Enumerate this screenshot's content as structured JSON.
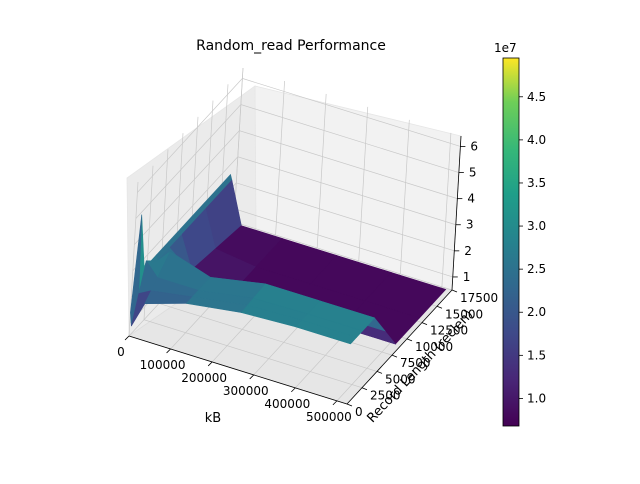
{
  "chart_data": {
    "type": "surface",
    "title": "Random_read Performance",
    "xlabel": "kB",
    "ylabel": "Record Length (reclen)",
    "zlabel": "",
    "x_ticks": [
      "0",
      "100000",
      "200000",
      "300000",
      "400000",
      "500000"
    ],
    "y_ticks": [
      "0",
      "2500",
      "5000",
      "7500",
      "10000",
      "12500",
      "15000",
      "17500"
    ],
    "z_ticks": [
      "1",
      "2",
      "3",
      "4",
      "5",
      "6"
    ],
    "z_offset_label": "",
    "colorbar": {
      "ticks": [
        "1.0",
        "1.5",
        "2.0",
        "2.5",
        "3.0",
        "3.5",
        "4.0",
        "4.5"
      ],
      "offset_label": "1e7",
      "range": [
        6800000,
        49500000
      ],
      "colormap": "viridis"
    },
    "xlim": [
      0,
      524288
    ],
    "ylim": [
      0,
      17500
    ],
    "surface_rows": [
      {
        "x": 64,
        "points": [
          [
            0,
            1.4
          ],
          [
            1000,
            4.9
          ],
          [
            2000,
            2.6
          ]
        ]
      },
      {
        "x": 4096,
        "points": [
          [
            0,
            0.9
          ],
          [
            2000,
            2.9
          ],
          [
            4000,
            2.4
          ]
        ]
      },
      {
        "x": 32768,
        "points": [
          [
            0,
            1.9
          ],
          [
            4000,
            2.9
          ],
          [
            8000,
            1.2
          ],
          [
            16384,
            0.8
          ]
        ]
      },
      {
        "x": 131072,
        "points": [
          [
            0,
            2.4
          ],
          [
            4000,
            2.4
          ],
          [
            8000,
            0.8
          ],
          [
            16384,
            0.8
          ]
        ]
      },
      {
        "x": 262144,
        "points": [
          [
            0,
            2.7
          ],
          [
            4000,
            2.8
          ],
          [
            8000,
            0.8
          ],
          [
            16384,
            0.8
          ]
        ]
      },
      {
        "x": 393216,
        "points": [
          [
            0,
            2.8
          ],
          [
            4000,
            2.8
          ],
          [
            8000,
            0.8
          ],
          [
            16384,
            0.8
          ]
        ]
      },
      {
        "x": 524288,
        "points": [
          [
            0,
            2.8
          ],
          [
            4000,
            2.8
          ],
          [
            8000,
            0.8
          ],
          [
            16384,
            0.8
          ]
        ]
      }
    ]
  }
}
